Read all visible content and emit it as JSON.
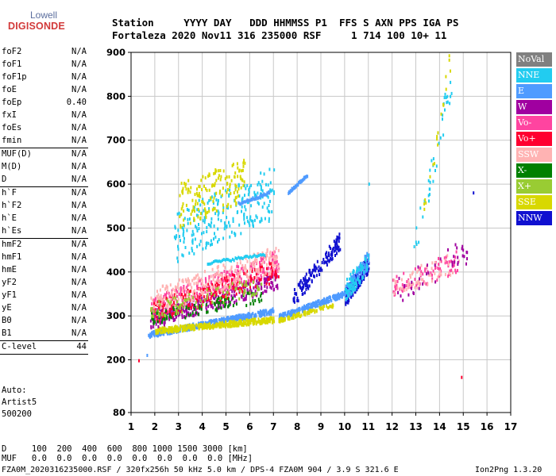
{
  "logo": {
    "brand_top": "Lowell",
    "brand_main": "DIGISONDE"
  },
  "header": {
    "labels": "Station     YYYY DAY   DDD HHMMSS P1  FFS S AXN PPS IGA PS",
    "values": "Fortaleza 2020 Nov11 316 235000 RSF     1 714 100 10+ 11"
  },
  "params": [
    {
      "k": "foF2",
      "v": "N/A"
    },
    {
      "k": "foF1",
      "v": "N/A"
    },
    {
      "k": "foF1p",
      "v": "N/A"
    },
    {
      "k": "foE",
      "v": "N/A"
    },
    {
      "k": "foEp",
      "v": "0.40"
    },
    {
      "k": "fxI",
      "v": "N/A"
    },
    {
      "k": "foEs",
      "v": "N/A"
    },
    {
      "k": "fmin",
      "v": "N/A"
    },
    {
      "sep": true
    },
    {
      "k": "MUF(D)",
      "v": "N/A"
    },
    {
      "k": "M(D)",
      "v": "N/A"
    },
    {
      "k": "D",
      "v": "N/A"
    },
    {
      "sep": true
    },
    {
      "k": "h`F",
      "v": "N/A"
    },
    {
      "k": "h`F2",
      "v": "N/A"
    },
    {
      "k": "h`E",
      "v": "N/A"
    },
    {
      "k": "h`Es",
      "v": "N/A"
    },
    {
      "sep": true
    },
    {
      "k": "hmF2",
      "v": "N/A"
    },
    {
      "k": "hmF1",
      "v": "N/A"
    },
    {
      "k": "hmE",
      "v": "N/A"
    },
    {
      "k": "yF2",
      "v": "N/A"
    },
    {
      "k": "yF1",
      "v": "N/A"
    },
    {
      "k": "yE",
      "v": "N/A"
    },
    {
      "k": "B0",
      "v": "N/A"
    },
    {
      "k": "B1",
      "v": "N/A"
    },
    {
      "sep": true
    },
    {
      "k": "C-level",
      "v": "44"
    },
    {
      "sep": true
    }
  ],
  "autoscale": {
    "line1": "Auto:",
    "line2": "Artist5",
    "line3": "500200"
  },
  "legend": [
    {
      "label": "NoVal",
      "color": "#808080"
    },
    {
      "label": "NNE",
      "color": "#22ccf0"
    },
    {
      "label": "E",
      "color": "#4f9bff"
    },
    {
      "label": "W",
      "color": "#a000a0"
    },
    {
      "label": "Vo-",
      "color": "#ff44a0"
    },
    {
      "label": "Vo+",
      "color": "#ff0030"
    },
    {
      "label": "SSW",
      "color": "#ffb3b3"
    },
    {
      "label": "X-",
      "color": "#008000"
    },
    {
      "label": "X+",
      "color": "#99cc33"
    },
    {
      "label": "SSE",
      "color": "#d8d800"
    },
    {
      "label": "NNW",
      "color": "#1010d0"
    }
  ],
  "footer": {
    "line_d": "D     100  200  400  600  800 1000 1500 3000 [km]",
    "line_muf": "MUF   0.0  0.0  0.0  0.0  0.0  0.0  0.0  0.0 [MHz]",
    "line_file": "FZA0M_2020316235000.RSF / 320fx256h 50 kHz 5.0 km / DPS-4 FZA0M 904 / 3.9 S 321.6 E",
    "line_ver": "Ion2Png 1.3.20"
  },
  "chart_data": {
    "type": "scatter",
    "title": "",
    "xlabel": "",
    "ylabel": "",
    "xlim": [
      1,
      17
    ],
    "ylim": [
      80,
      900
    ],
    "xticks": [
      1,
      2,
      3,
      4,
      5,
      6,
      7,
      8,
      9,
      10,
      11,
      12,
      13,
      14,
      15,
      16,
      17
    ],
    "yticks": [
      80,
      200,
      300,
      400,
      500,
      600,
      700,
      800,
      900
    ],
    "grid": true,
    "clusters": [
      {
        "series": "E",
        "x": [
          1.7,
          7.0
        ],
        "h_start": [
          250,
          305
        ],
        "spread": 12,
        "n": 420
      },
      {
        "series": "SSE",
        "x": [
          2.0,
          7.0
        ],
        "h_start": [
          260,
          285
        ],
        "spread": 12,
        "n": 380
      },
      {
        "series": "W",
        "x": [
          1.8,
          7.2
        ],
        "h_start": [
          270,
          360
        ],
        "spread": 40,
        "n": 320
      },
      {
        "series": "Vo-",
        "x": [
          1.8,
          7.2
        ],
        "h_start": [
          290,
          400
        ],
        "spread": 50,
        "n": 300
      },
      {
        "series": "Vo+",
        "x": [
          1.8,
          7.2
        ],
        "h_start": [
          280,
          380
        ],
        "spread": 50,
        "n": 220
      },
      {
        "series": "SSW",
        "x": [
          1.8,
          7.2
        ],
        "h_start": [
          300,
          400
        ],
        "spread": 60,
        "n": 260
      },
      {
        "series": "X-",
        "x": [
          1.8,
          6.5
        ],
        "h_start": [
          280,
          330
        ],
        "spread": 30,
        "n": 90
      },
      {
        "series": "X+",
        "x": [
          1.8,
          6.5
        ],
        "h_start": [
          290,
          350
        ],
        "spread": 40,
        "n": 90
      },
      {
        "series": "NNE",
        "x": [
          2.8,
          7.0
        ],
        "h_start": [
          420,
          520
        ],
        "spread": 120,
        "n": 240
      },
      {
        "series": "SSE",
        "x": [
          3.0,
          5.8
        ],
        "h_start": [
          500,
          560
        ],
        "spread": 100,
        "n": 160
      },
      {
        "series": "E",
        "x": [
          7.2,
          10.3
        ],
        "h_start": [
          290,
          350
        ],
        "spread": 12,
        "n": 260
      },
      {
        "series": "SSE",
        "x": [
          7.2,
          9.5
        ],
        "h_start": [
          285,
          320
        ],
        "spread": 8,
        "n": 90
      },
      {
        "series": "NNW",
        "x": [
          7.8,
          9.8
        ],
        "h_start": [
          320,
          450
        ],
        "spread": 40,
        "n": 140
      },
      {
        "series": "NNW",
        "x": [
          10.0,
          11.0
        ],
        "h_start": [
          320,
          400
        ],
        "spread": 40,
        "n": 160
      },
      {
        "series": "E",
        "x": [
          10.0,
          11.0
        ],
        "h_start": [
          330,
          410
        ],
        "spread": 40,
        "n": 100
      },
      {
        "series": "NNE",
        "x": [
          10.0,
          11.0
        ],
        "h_start": [
          330,
          400
        ],
        "spread": 50,
        "n": 80
      },
      {
        "series": "Vo-",
        "x": [
          12.0,
          14.8
        ],
        "h_start": [
          340,
          400
        ],
        "spread": 50,
        "n": 90
      },
      {
        "series": "SSW",
        "x": [
          12.0,
          14.8
        ],
        "h_start": [
          340,
          400
        ],
        "spread": 50,
        "n": 60
      },
      {
        "series": "NNE",
        "x": [
          12.8,
          14.5
        ],
        "h_start": [
          380,
          800
        ],
        "spread": 80,
        "n": 40
      },
      {
        "series": "SSE",
        "x": [
          13.3,
          14.5
        ],
        "h_start": [
          500,
          880
        ],
        "spread": 60,
        "n": 20
      },
      {
        "series": "W",
        "x": [
          12.0,
          15.2
        ],
        "h_start": [
          320,
          420
        ],
        "spread": 60,
        "n": 40
      }
    ],
    "ramps": [
      {
        "series": "E",
        "x": [
          5.5,
          6.8
        ],
        "h": [
          555,
          580
        ]
      },
      {
        "series": "E",
        "x": [
          7.6,
          8.4
        ],
        "h": [
          580,
          620
        ]
      },
      {
        "series": "NNE",
        "x": [
          4.2,
          6.6
        ],
        "h": [
          420,
          440
        ]
      }
    ],
    "echoes": [
      {
        "series": "E",
        "x": 1.65,
        "h": 210
      },
      {
        "series": "Vo+",
        "x": 1.3,
        "h": 198
      },
      {
        "series": "NNW",
        "x": 15.4,
        "h": 580
      },
      {
        "series": "Vo+",
        "x": 14.9,
        "h": 160
      },
      {
        "series": "NNE",
        "x": 11.0,
        "h": 600
      }
    ]
  }
}
